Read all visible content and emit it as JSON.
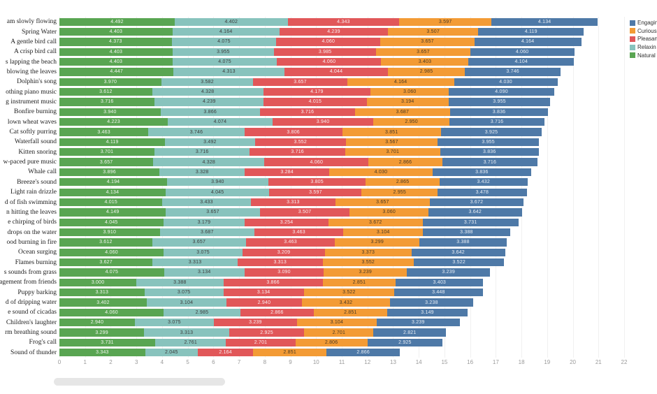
{
  "legend": {
    "position": "top-right",
    "items": [
      {
        "label": "Engagin",
        "series": "Engaging",
        "color": "#4e79a7"
      },
      {
        "label": "Curious",
        "series": "Curious",
        "color": "#f39b35"
      },
      {
        "label": "Pleasan",
        "series": "Pleasant",
        "color": "#e15759"
      },
      {
        "label": "Relaxin",
        "series": "Relaxing",
        "color": "#88c3bd"
      },
      {
        "label": "Natural",
        "series": "Natural",
        "color": "#59a552"
      }
    ]
  },
  "chart_data": {
    "type": "bar",
    "orientation": "horizontal",
    "stacked": true,
    "title": "",
    "xlabel": "",
    "ylabel": "",
    "xlim": [
      0,
      22
    ],
    "x_ticks": [
      0,
      1,
      2,
      3,
      4,
      5,
      6,
      7,
      8,
      9,
      10,
      11,
      12,
      13,
      14,
      15,
      16,
      17,
      18,
      19,
      20,
      21,
      22
    ],
    "grid": true,
    "value_labels_shown": true,
    "categories": [
      "am slowly flowing",
      "Spring Water",
      "A gentle bird call",
      "A crisp bird call",
      "s lapping the beach",
      "blowing the leaves",
      "Dolphin's song",
      "othing piano music",
      "g instrument music",
      "Bonfire burning",
      "lown wheat waves",
      "Cat softly purring",
      "Waterfall sound",
      "Kitten snoring",
      "w-paced pure music",
      "Whale call",
      "Breeze's sound",
      "Light rain drizzle",
      "d of fish swimming",
      "n hitting the leaves",
      "e chirping of birds",
      "drops on the water",
      "ood burning in fire",
      "Ocean surging",
      "Flames burning",
      "s sounds from grass",
      "ragement from friends",
      "Puppy barking",
      "d of dripping water",
      "e sound of cicadas",
      "Children's laughter",
      "rm breathing sound",
      "Frog's call",
      "Sound of thunder"
    ],
    "series": [
      {
        "name": "Natural",
        "color": "#59a552",
        "label_color": "#f3f6f0",
        "values": [
          "4.492",
          "4.403",
          "4.373",
          "4.403",
          "4.403",
          "4.447",
          "3.970",
          "3.612",
          "3.716",
          "3.940",
          "4.223",
          "3.463",
          "4.119",
          "3.701",
          "3.657",
          "3.896",
          "4.194",
          "4.134",
          "4.015",
          "4.149",
          "4.045",
          "3.910",
          "3.612",
          "4.060",
          "3.627",
          "4.075",
          "3.000",
          "3.313",
          "3.402",
          "4.060",
          "2.940",
          "3.299",
          "3.731",
          "3.343"
        ]
      },
      {
        "name": "Relaxing",
        "color": "#88c3bd",
        "label_color": "#3d3d3d",
        "values": [
          "4.402",
          "4.164",
          "4.075",
          "3.955",
          "4.075",
          "4.313",
          "3.582",
          "4.328",
          "4.239",
          "3.866",
          "4.074",
          "3.746",
          "3.492",
          "3.716",
          "4.328",
          "3.328",
          "3.940",
          "4.045",
          "3.433",
          "3.657",
          "3.179",
          "3.687",
          "3.657",
          "3.075",
          "3.313",
          "3.134",
          "3.388",
          "3.075",
          "3.104",
          "2.985",
          "3.075",
          "3.313",
          "2.761",
          "2.045"
        ]
      },
      {
        "name": "Pleasant",
        "color": "#e15759",
        "label_color": "#f9eef0",
        "values": [
          "4.343",
          "4.239",
          "4.060",
          "3.985",
          "4.060",
          "4.044",
          "3.657",
          "4.179",
          "4.015",
          "3.716",
          "3.940",
          "3.806",
          "3.552",
          "3.716",
          "4.060",
          "3.284",
          "3.805",
          "3.597",
          "3.313",
          "3.507",
          "3.254",
          "3.463",
          "3.463",
          "3.209",
          "3.313",
          "3.090",
          "3.866",
          "3.134",
          "2.940",
          "2.866",
          "3.239",
          "2.925",
          "2.701",
          "2.164"
        ]
      },
      {
        "name": "Curious",
        "color": "#f39b35",
        "label_color": "#4a3a25",
        "values": [
          "3.597",
          "3.507",
          "3.657",
          "3.657",
          "3.403",
          "2.985",
          "4.164",
          "3.060",
          "3.194",
          "3.687",
          "2.950",
          "3.851",
          "3.567",
          "3.701",
          "2.866",
          "4.030",
          "2.865",
          "2.955",
          "3.657",
          "3.060",
          "3.672",
          "3.104",
          "3.299",
          "3.373",
          "3.552",
          "3.239",
          "2.851",
          "3.522",
          "3.432",
          "2.851",
          "3.104",
          "2.701",
          "2.806",
          "2.851"
        ]
      },
      {
        "name": "Engaging",
        "color": "#4e79a7",
        "label_color": "#e9eef5",
        "values": [
          "4.134",
          "4.119",
          "4.164",
          "4.060",
          "4.104",
          "3.746",
          "4.030",
          "4.090",
          "3.955",
          "3.836",
          "3.716",
          "3.925",
          "3.955",
          "3.836",
          "3.716",
          "3.836",
          "3.432",
          "3.478",
          "3.672",
          "3.642",
          "3.731",
          "3.388",
          "3.388",
          "3.642",
          "3.522",
          "3.239",
          "3.403",
          "3.448",
          "3.238",
          "3.149",
          "3.239",
          "2.821",
          "2.925",
          "2.866"
        ]
      }
    ]
  },
  "ui": {
    "scrollbar_color": "#e6e6e6"
  }
}
